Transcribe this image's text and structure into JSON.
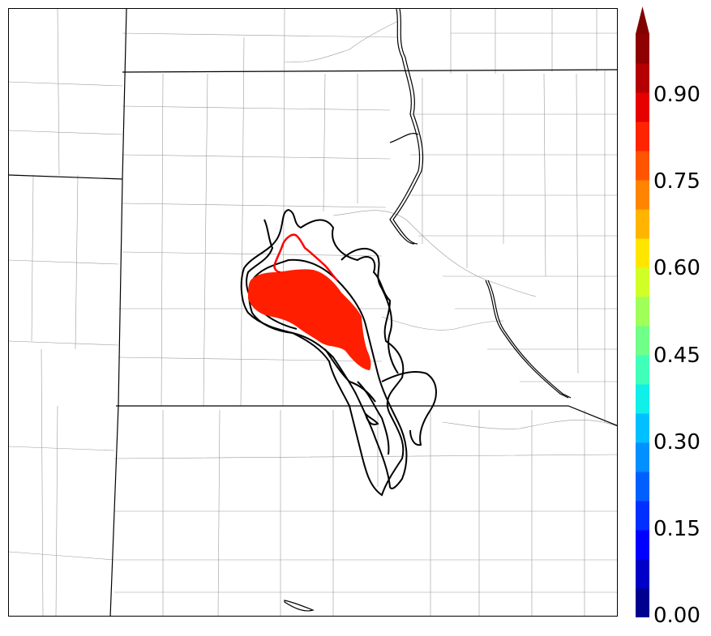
{
  "colorbar": {
    "tick_labels": [
      "0.00",
      "0.15",
      "0.30",
      "0.45",
      "0.60",
      "0.75",
      "0.90"
    ],
    "tick_values": [
      0.0,
      0.15,
      0.3,
      0.45,
      0.6,
      0.75,
      0.9
    ],
    "range": [
      0.0,
      1.0
    ],
    "extend": "max",
    "colors": [
      "#00008f",
      "#0000c8",
      "#0000ff",
      "#0030ff",
      "#0060ff",
      "#0090ff",
      "#00c0ff",
      "#10f0e8",
      "#40ffb8",
      "#70ff88",
      "#a0ff58",
      "#d0ff28",
      "#ffe600",
      "#ffb400",
      "#ff8400",
      "#ff5400",
      "#ff2400",
      "#e60000",
      "#b40000",
      "#8f0000"
    ],
    "extend_color": "#800000"
  },
  "map": {
    "filled_region_color": "#ff1e00",
    "outline_color": "#000000",
    "highlight_outline_color": "#ff0000"
  }
}
